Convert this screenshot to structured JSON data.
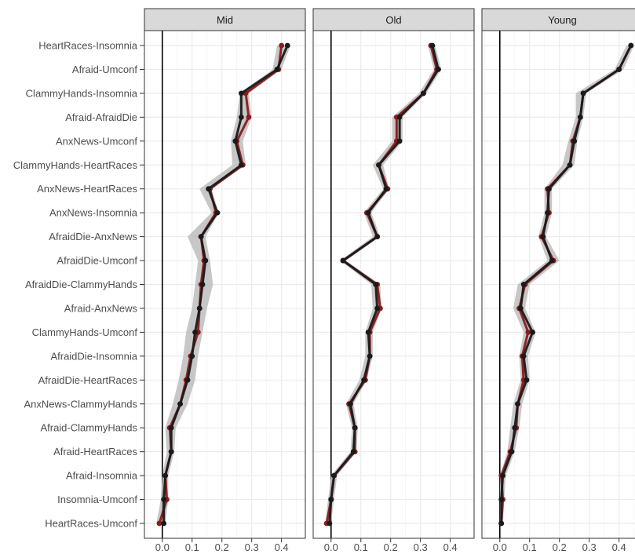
{
  "chart_data": {
    "type": "line",
    "categories": [
      "HeartRaces-Insomnia",
      "Afraid-Umconf",
      "ClammyHands-Insomnia",
      "Afraid-AfraidDie",
      "AnxNews-Umconf",
      "ClammyHands-HeartRaces",
      "AnxNews-HeartRaces",
      "AnxNews-Insomnia",
      "AfraidDie-AnxNews",
      "AfraidDie-Umconf",
      "AfraidDie-ClammyHands",
      "Afraid-AnxNews",
      "ClammyHands-Umconf",
      "AfraidDie-Insomnia",
      "AfraidDie-HeartRaces",
      "AnxNews-ClammyHands",
      "Afraid-ClammyHands",
      "Afraid-HeartRaces",
      "Afraid-Insomnia",
      "Insomnia-Umconf",
      "HeartRaces-Umconf"
    ],
    "x_ticks": [
      "0.0",
      "0.1",
      "0.2",
      "0.3",
      "0.4"
    ],
    "xlim": [
      -0.06,
      0.48
    ],
    "grid": true,
    "legend": "none",
    "colors": {
      "black_series": "#1a1a1a",
      "red_series": "#8b1a1a",
      "band": "#bdbdbd",
      "strip_fill": "#d9d9d9",
      "strip_border": "#333333",
      "grid": "#ebebeb",
      "zero_line": "#000000"
    },
    "facets": [
      {
        "name": "Mid",
        "black": [
          0.42,
          0.385,
          0.265,
          0.265,
          0.245,
          0.265,
          0.155,
          0.185,
          0.13,
          0.145,
          0.135,
          0.125,
          0.11,
          0.1,
          0.085,
          0.06,
          0.03,
          0.03,
          0.01,
          0.005,
          0.005
        ],
        "red": [
          0.4,
          0.39,
          0.28,
          0.29,
          0.25,
          0.27,
          0.16,
          0.18,
          0.13,
          0.14,
          0.13,
          0.125,
          0.12,
          0.095,
          0.08,
          0.06,
          0.025,
          0.03,
          0.01,
          0.015,
          -0.01
        ],
        "band_lo": [
          0.385,
          0.37,
          0.26,
          0.25,
          0.23,
          0.235,
          0.125,
          0.165,
          0.085,
          0.12,
          0.11,
          0.1,
          0.08,
          0.07,
          0.055,
          0.035,
          0.01,
          0.015,
          0.0,
          -0.005,
          -0.02
        ],
        "band_hi": [
          0.43,
          0.4,
          0.29,
          0.3,
          0.27,
          0.28,
          0.165,
          0.19,
          0.145,
          0.16,
          0.17,
          0.15,
          0.135,
          0.12,
          0.11,
          0.085,
          0.045,
          0.04,
          0.02,
          0.02,
          0.01
        ]
      },
      {
        "name": "Old",
        "black": [
          0.34,
          0.36,
          0.31,
          0.23,
          0.23,
          0.16,
          0.185,
          0.125,
          0.155,
          0.04,
          0.15,
          0.155,
          0.125,
          0.13,
          0.11,
          0.065,
          0.08,
          0.075,
          0.01,
          0.0,
          -0.005
        ],
        "red": [
          0.335,
          0.355,
          0.31,
          0.22,
          0.22,
          0.16,
          0.19,
          0.12,
          0.155,
          0.04,
          0.155,
          0.165,
          0.13,
          0.13,
          0.115,
          0.06,
          0.08,
          0.08,
          0.01,
          0.0,
          -0.015
        ],
        "band_lo": [
          0.325,
          0.345,
          0.295,
          0.205,
          0.205,
          0.14,
          0.175,
          0.11,
          0.14,
          0.03,
          0.135,
          0.14,
          0.115,
          0.115,
          0.095,
          0.05,
          0.07,
          0.065,
          0.0,
          -0.01,
          -0.02
        ],
        "band_hi": [
          0.35,
          0.37,
          0.32,
          0.24,
          0.24,
          0.175,
          0.195,
          0.135,
          0.165,
          0.05,
          0.165,
          0.17,
          0.14,
          0.14,
          0.12,
          0.075,
          0.09,
          0.085,
          0.02,
          0.01,
          0.0
        ]
      },
      {
        "name": "Young",
        "black": [
          0.44,
          0.4,
          0.28,
          0.27,
          0.25,
          0.235,
          0.165,
          0.16,
          0.145,
          0.175,
          0.08,
          0.07,
          0.11,
          0.08,
          0.09,
          0.06,
          0.05,
          0.04,
          0.01,
          0.005,
          0.005
        ],
        "red": [
          0.44,
          0.4,
          0.28,
          0.27,
          0.245,
          0.235,
          0.16,
          0.165,
          0.14,
          0.18,
          0.085,
          0.065,
          0.095,
          0.075,
          0.08,
          0.06,
          0.055,
          0.035,
          0.005,
          0.01,
          0.005
        ],
        "band_lo": [
          0.425,
          0.385,
          0.255,
          0.255,
          0.23,
          0.21,
          0.15,
          0.15,
          0.13,
          0.16,
          0.06,
          0.045,
          0.08,
          0.065,
          0.07,
          0.045,
          0.035,
          0.025,
          0.0,
          0.0,
          0.0
        ],
        "band_hi": [
          0.45,
          0.415,
          0.29,
          0.28,
          0.26,
          0.25,
          0.175,
          0.175,
          0.155,
          0.2,
          0.1,
          0.085,
          0.12,
          0.095,
          0.1,
          0.075,
          0.065,
          0.05,
          0.02,
          0.015,
          0.01
        ]
      }
    ]
  }
}
